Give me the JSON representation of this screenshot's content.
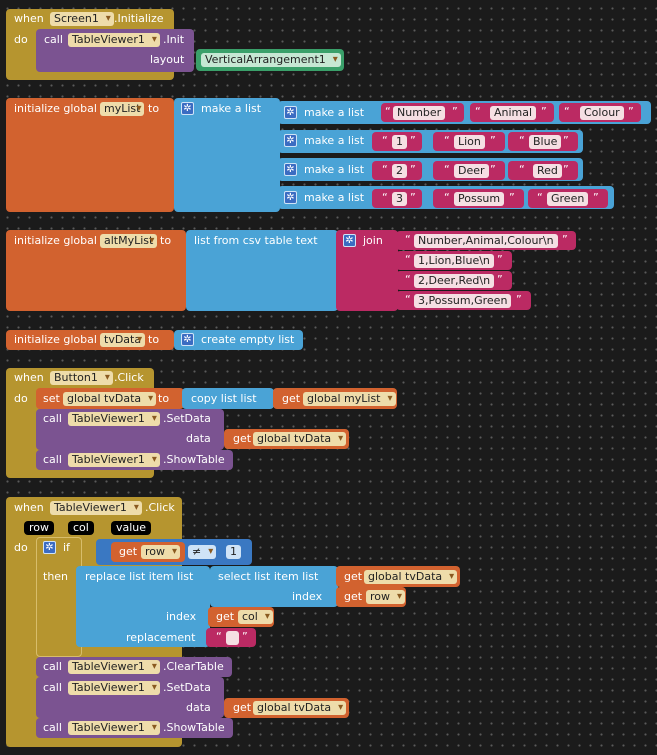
{
  "kw": {
    "when": "when",
    "do": "do",
    "call": "call",
    "layout": "layout",
    "init_global": "initialize global",
    "to": "to",
    "make_list": "make a list",
    "list_from_csv": "list from csv table  text",
    "join": "join",
    "create_empty": "create empty list",
    "set": "set",
    "copy_list": "copy list  list",
    "get": "get",
    "data": "data",
    "if": "if",
    "then": "then",
    "replace_item": "replace list item  list",
    "select_item": "select list item  list",
    "index": "index",
    "replacement": "replacement",
    "neq": "≠"
  },
  "b1": {
    "component": "Screen1",
    "event": ".Initialize",
    "call_component": "TableViewer1",
    "method": ".Init",
    "arg": "VerticalArrangement1"
  },
  "b2": {
    "var": "myList",
    "rows": [
      [
        "Number",
        "Animal",
        "Colour"
      ],
      [
        "1",
        "Lion",
        "Blue"
      ],
      [
        "2",
        "Deer",
        "Red"
      ],
      [
        "3",
        "Possum",
        "Green"
      ]
    ]
  },
  "b3": {
    "var": "altMyList",
    "items": [
      "Number,Animal,Colour\\n",
      "1,Lion,Blue\\n",
      "2,Deer,Red\\n",
      "3,Possum,Green"
    ]
  },
  "b4": {
    "var": "tvData"
  },
  "b5": {
    "component": "Button1",
    "event": ".Click",
    "set_var": "global tvData",
    "get_var": "global myList",
    "call_component": "TableViewer1",
    "setdata": ".SetData",
    "get_data": "global tvData",
    "showtable": ".ShowTable"
  },
  "b6": {
    "component": "TableViewer1",
    "event": ".Click",
    "params": [
      "row",
      "col",
      "value"
    ],
    "get_row": "row",
    "num": "1",
    "list_var": "global tvData",
    "get_row2": "row",
    "get_col": "col",
    "repl": "",
    "call_component": "TableViewer1",
    "cleartable": ".ClearTable",
    "setdata": ".SetData",
    "get_data": "global tvData",
    "showtable": ".ShowTable"
  },
  "colors": {
    "event": "#b6952f",
    "procedure": "#7b5391",
    "variable": "#d2622f",
    "list": "#4aa3d6",
    "text": "#bb2a63",
    "component": "#3aa06a"
  }
}
